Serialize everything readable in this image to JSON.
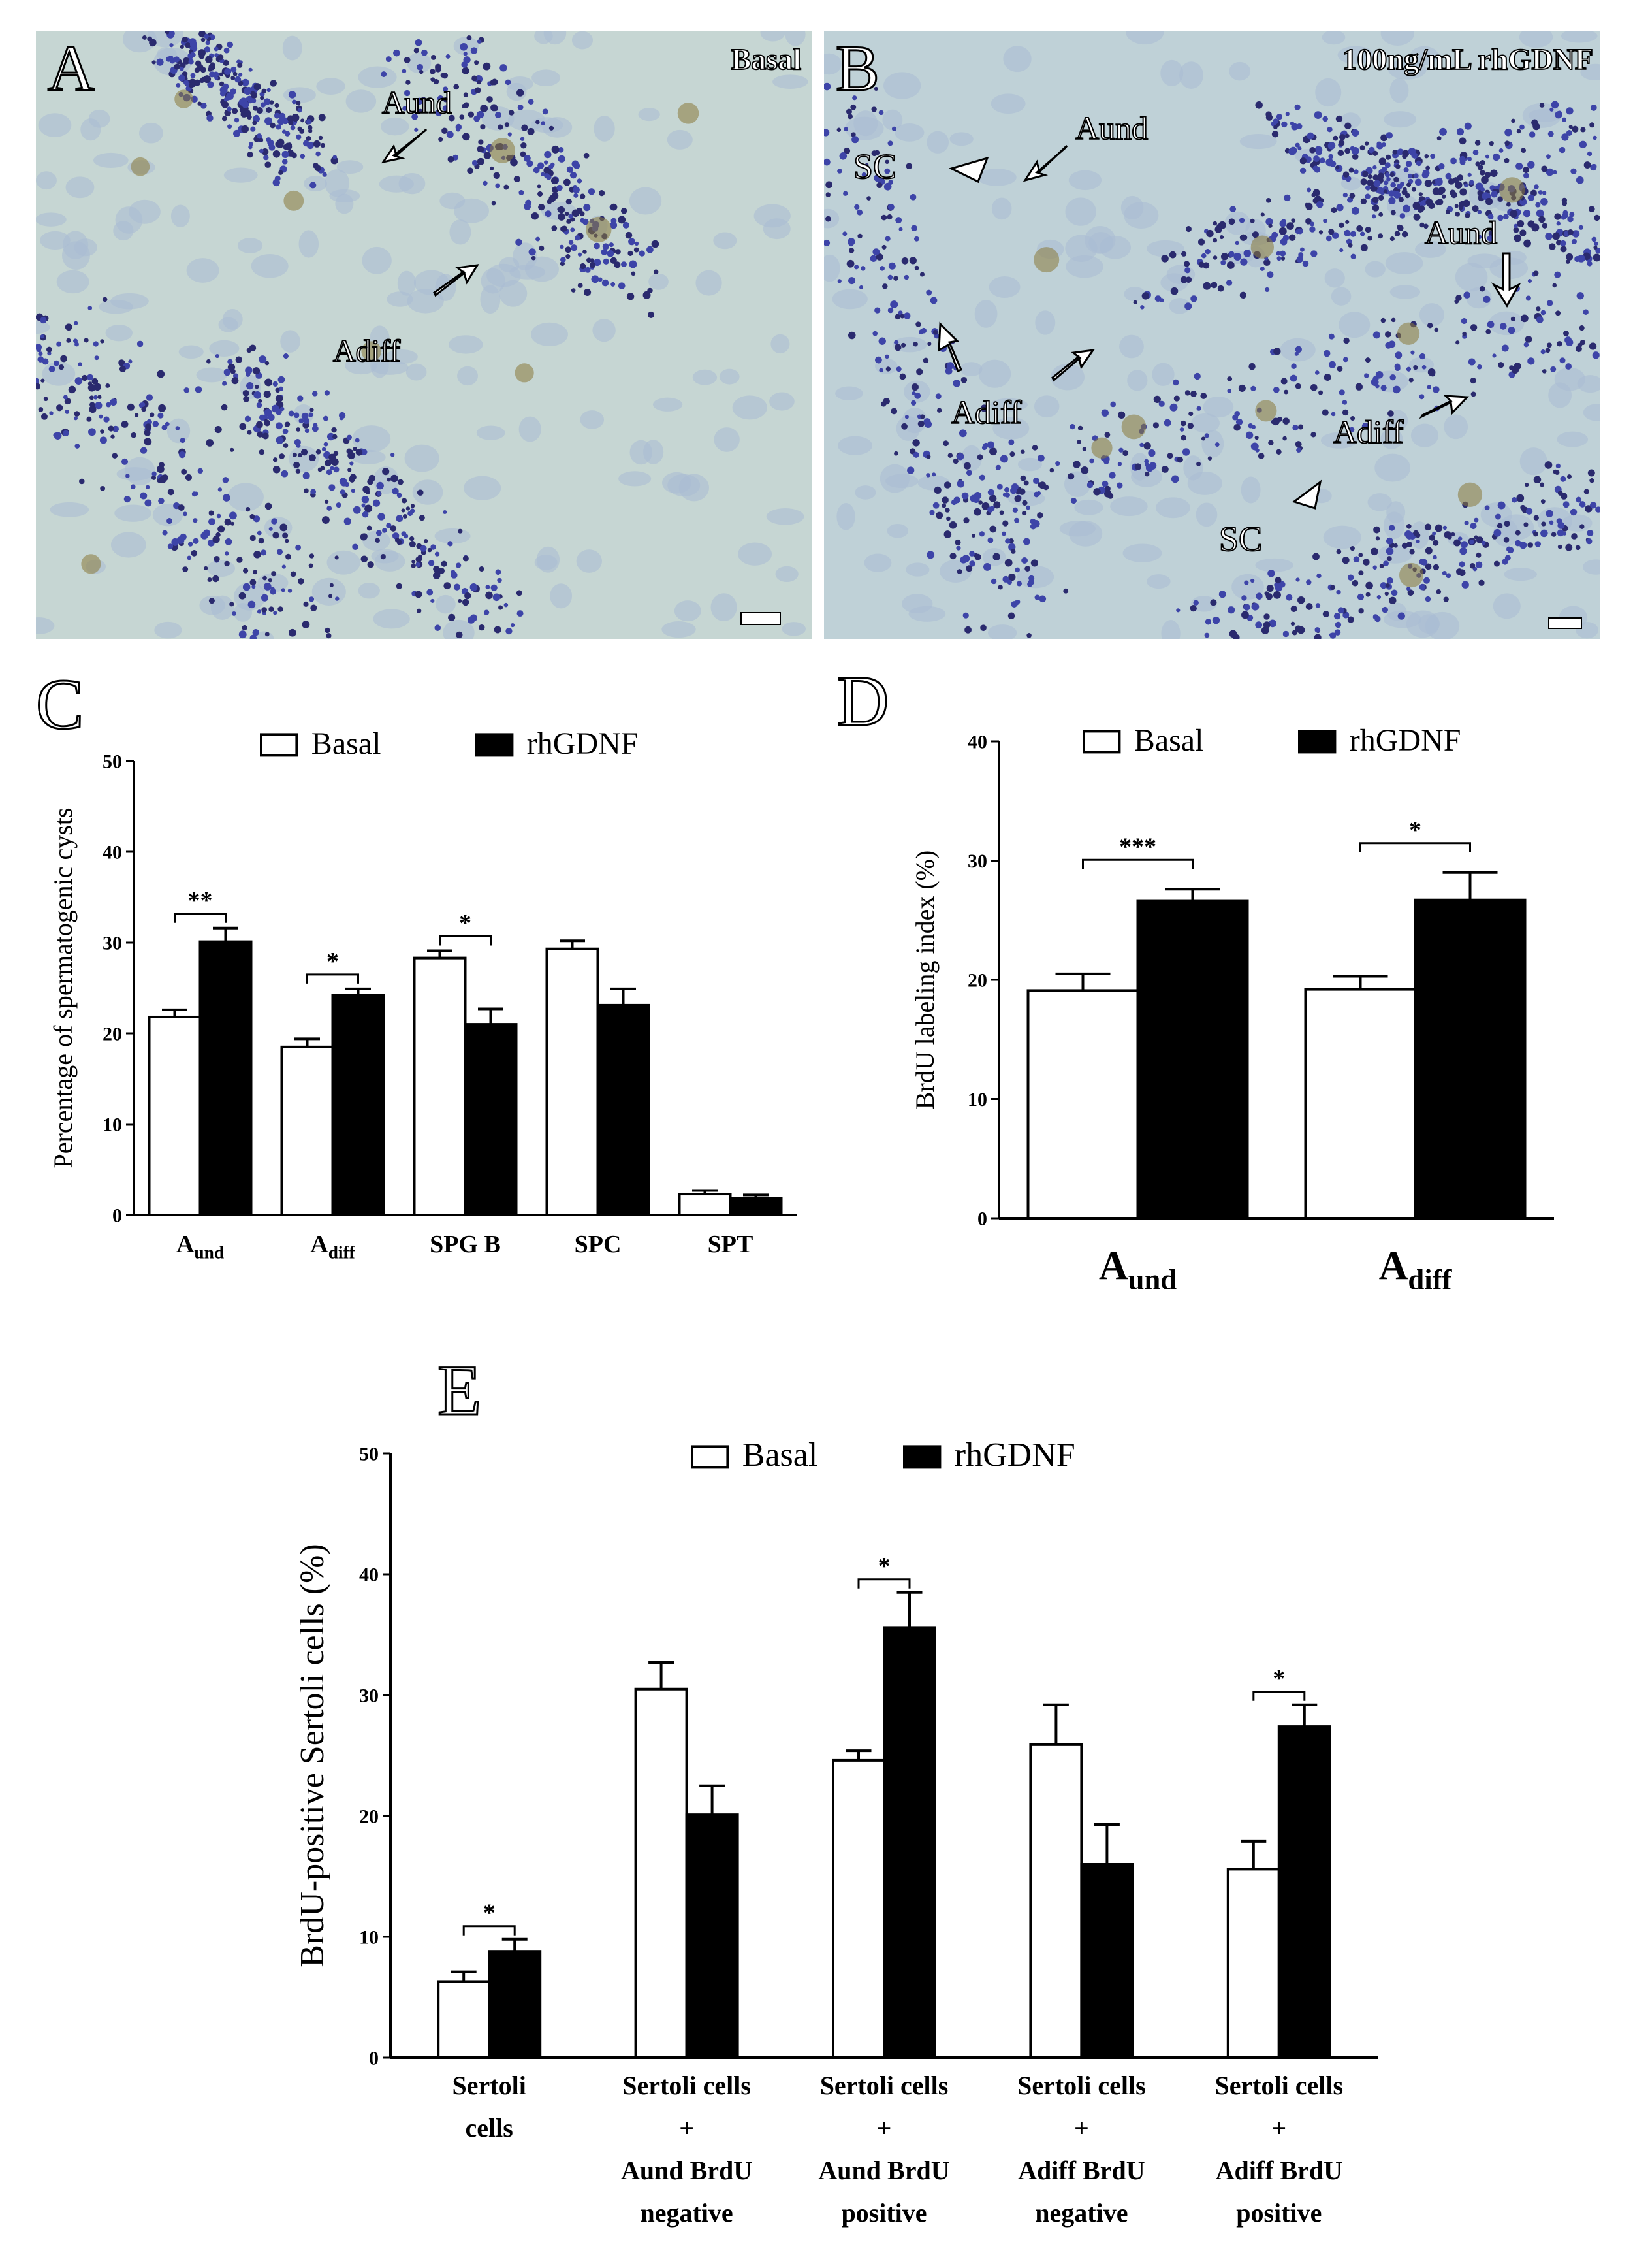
{
  "panels": {
    "A": {
      "letter": "A",
      "condition": "Basal",
      "labels": [
        {
          "text": "Aund",
          "kind": "arrow"
        },
        {
          "text": "Adiff",
          "kind": "arrow"
        }
      ]
    },
    "B": {
      "letter": "B",
      "condition": "100ng/mL rhGDNF",
      "labels": [
        {
          "text": "SC",
          "kind": "arrowhead"
        },
        {
          "text": "Aund",
          "kind": "arrow"
        },
        {
          "text": "Aund",
          "kind": "arrow"
        },
        {
          "text": "Adiff",
          "kind": "arrow"
        },
        {
          "text": "Adiff",
          "kind": "arrow"
        },
        {
          "text": "SC",
          "kind": "arrowhead"
        }
      ]
    }
  },
  "colors": {
    "tissue_bg": "#c9d8d4",
    "nucleus_dark": "#2a2a6e",
    "nucleus_blue": "#3d44a8",
    "cell_pale": "#a9bcd3",
    "brdu_brown": "#8a7a3a",
    "bar_basal": "#ffffff",
    "bar_rhgdnf": "#000000"
  },
  "chart_data": [
    {
      "panel": "C",
      "type": "bar",
      "ylabel": "Percentage of spermatogenic cysts",
      "xlabel": "",
      "ylim": [
        0,
        50
      ],
      "yticks": [
        "0",
        "10",
        "20",
        "30",
        "40",
        "50"
      ],
      "categories": [
        "A",
        "A",
        "SPG B",
        "SPC",
        "SPT"
      ],
      "category_subscripts": [
        "und",
        "diff",
        "",
        "",
        ""
      ],
      "series": [
        {
          "name": "Basal",
          "values": [
            21.8,
            18.5,
            28.3,
            29.3,
            2.3
          ],
          "errors": [
            0.8,
            0.9,
            0.8,
            0.9,
            0.4
          ]
        },
        {
          "name": "rhGDNF",
          "values": [
            30.1,
            24.2,
            21.0,
            23.1,
            1.8
          ],
          "errors": [
            1.5,
            0.7,
            1.7,
            1.8,
            0.4
          ]
        }
      ],
      "significance": [
        {
          "category": 0,
          "label": "**"
        },
        {
          "category": 1,
          "label": "*"
        },
        {
          "category": 2,
          "label": "*"
        }
      ]
    },
    {
      "panel": "D",
      "type": "bar",
      "ylabel": "BrdU labeling index (%)",
      "xlabel": "",
      "ylim": [
        0,
        40
      ],
      "yticks": [
        "0",
        "10",
        "20",
        "30",
        "40"
      ],
      "categories": [
        "A",
        "A"
      ],
      "category_subscripts": [
        "und",
        "diff"
      ],
      "series": [
        {
          "name": "Basal",
          "values": [
            19.1,
            19.2
          ],
          "errors": [
            1.4,
            1.1
          ]
        },
        {
          "name": "rhGDNF",
          "values": [
            26.6,
            26.7
          ],
          "errors": [
            1.0,
            2.3
          ]
        }
      ],
      "significance": [
        {
          "category": 0,
          "label": "***"
        },
        {
          "category": 1,
          "label": "*"
        }
      ]
    },
    {
      "panel": "E",
      "type": "bar",
      "ylabel": "BrdU-positive Sertoli cells (%)",
      "xlabel": "",
      "ylim": [
        0,
        50
      ],
      "yticks": [
        "0",
        "10",
        "20",
        "30",
        "40",
        "50"
      ],
      "categories": [
        [
          "Sertoli",
          "cells"
        ],
        [
          "Sertoli cells",
          "+",
          "Aund BrdU",
          "negative"
        ],
        [
          "Sertoli cells",
          "+",
          "Aund BrdU",
          "positive"
        ],
        [
          "Sertoli cells",
          "+",
          "Adiff BrdU",
          "negative"
        ],
        [
          "Sertoli cells",
          "+",
          "Adiff BrdU",
          "positive"
        ]
      ],
      "series": [
        {
          "name": "Basal",
          "values": [
            6.3,
            30.5,
            24.6,
            25.9,
            15.6
          ],
          "errors": [
            0.8,
            2.2,
            0.8,
            3.3,
            2.3
          ]
        },
        {
          "name": "rhGDNF",
          "values": [
            8.8,
            20.1,
            35.6,
            16.0,
            27.4
          ],
          "errors": [
            1.0,
            2.4,
            2.9,
            3.3,
            1.8
          ]
        }
      ],
      "significance": [
        {
          "category": 0,
          "label": "*"
        },
        {
          "category": 2,
          "label": "*"
        },
        {
          "category": 4,
          "label": "*"
        }
      ]
    }
  ]
}
